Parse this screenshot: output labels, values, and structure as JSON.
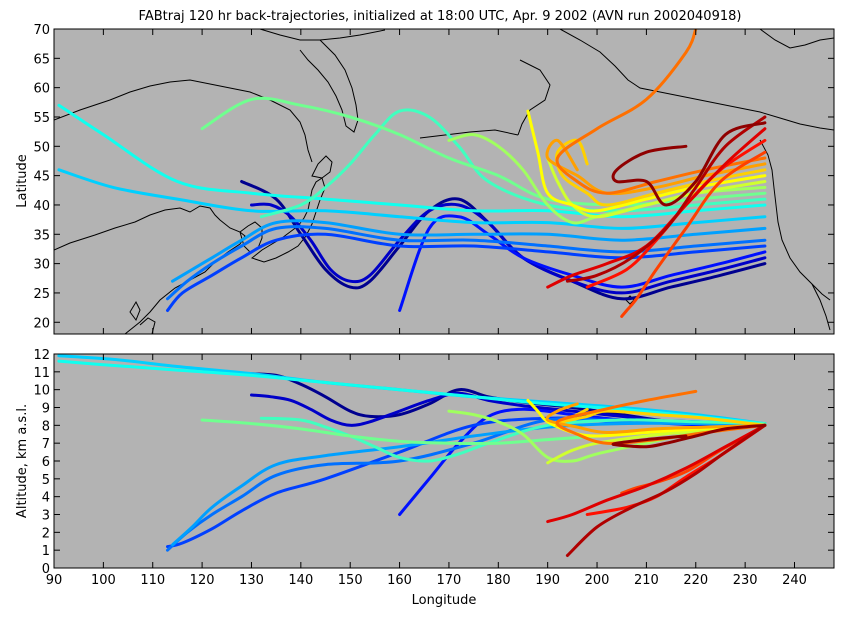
{
  "chart_data": [
    {
      "type": "line",
      "panel": "map",
      "title": "FABtraj 120 hr back-trajectories, initialized at 18:00 UTC, Apr. 9 2002 (AVN run 2002040918)",
      "ylabel": "Latitude",
      "xlim": [
        90,
        248
      ],
      "ylim": [
        18,
        70
      ],
      "xticks": [],
      "yticks": [
        20,
        25,
        30,
        35,
        40,
        45,
        50,
        55,
        60,
        65,
        70
      ],
      "grid": false,
      "coastlines": true
    },
    {
      "type": "line",
      "panel": "altitude",
      "xlabel": "Longitude",
      "ylabel": "Altitude, km a.s.l.",
      "xlim": [
        90,
        248
      ],
      "ylim": [
        0,
        12
      ],
      "xticks": [
        90,
        100,
        110,
        120,
        130,
        140,
        150,
        160,
        170,
        180,
        190,
        200,
        210,
        220,
        230,
        240
      ],
      "yticks": [
        0,
        1,
        2,
        3,
        4,
        5,
        6,
        7,
        8,
        9,
        10,
        11,
        12
      ],
      "grid": false
    }
  ],
  "trajectories": [
    {
      "color": "#00008f",
      "lon": [
        234,
        225,
        215,
        205,
        195,
        185,
        178,
        172,
        166,
        160,
        154,
        150,
        145,
        140,
        135,
        128
      ],
      "lat": [
        30,
        28,
        26,
        24,
        27,
        31,
        37,
        41,
        39,
        33,
        27,
        26,
        29,
        35,
        41,
        44
      ],
      "alt": [
        8.1,
        8.0,
        8.2,
        8.6,
        9.0,
        9.3,
        9.6,
        10.0,
        9.2,
        8.6,
        8.5,
        8.8,
        9.6,
        10.3,
        10.8,
        10.9
      ]
    },
    {
      "color": "#0000c8",
      "lon": [
        234,
        225,
        215,
        205,
        195,
        185,
        178,
        172,
        166,
        160,
        154,
        150,
        146,
        142,
        138,
        134,
        130
      ],
      "lat": [
        31,
        29,
        27,
        25,
        27,
        31,
        37,
        40,
        39,
        34,
        28,
        27,
        29,
        34,
        38,
        40,
        40
      ],
      "alt": [
        8.1,
        8.0,
        8.2,
        8.5,
        8.8,
        9.1,
        9.4,
        9.8,
        9.4,
        8.8,
        8.2,
        8.0,
        8.3,
        8.9,
        9.4,
        9.6,
        9.7
      ]
    },
    {
      "color": "#0010ff",
      "lon": [
        234,
        225,
        215,
        205,
        195,
        185,
        178,
        172,
        166,
        160
      ],
      "lat": [
        32,
        30,
        28,
        26,
        28,
        31,
        35,
        38,
        36,
        22
      ],
      "alt": [
        8.0,
        8.0,
        8.1,
        8.3,
        8.6,
        8.9,
        8.5,
        7.0,
        5.0,
        3.0
      ]
    },
    {
      "color": "#0040ff",
      "lon": [
        234,
        220,
        205,
        190,
        175,
        160,
        145,
        135,
        128,
        122,
        116,
        113
      ],
      "lat": [
        33,
        32,
        31,
        32,
        33,
        33,
        35,
        34,
        31,
        28,
        25,
        22
      ],
      "alt": [
        8.0,
        8.2,
        8.3,
        8.4,
        8.0,
        6.5,
        5.0,
        4.2,
        3.2,
        2.2,
        1.4,
        1.2
      ]
    },
    {
      "color": "#0070ff",
      "lon": [
        234,
        220,
        205,
        190,
        175,
        160,
        145,
        135,
        128,
        122,
        117,
        113
      ],
      "lat": [
        34,
        33,
        32,
        33,
        34,
        34,
        36,
        36,
        33,
        30,
        27,
        24
      ],
      "alt": [
        8.0,
        8.2,
        8.2,
        8.3,
        7.0,
        6.0,
        5.8,
        5.2,
        4.0,
        3.0,
        2.0,
        1.0
      ]
    },
    {
      "color": "#00a0ff",
      "lon": [
        234,
        220,
        205,
        190,
        175,
        160,
        145,
        135,
        128,
        122,
        118,
        114
      ],
      "lat": [
        36,
        35,
        34,
        35,
        35,
        35,
        37,
        37,
        34,
        31,
        29,
        27
      ],
      "alt": [
        8.0,
        8.1,
        8.1,
        7.9,
        7.4,
        6.8,
        6.3,
        5.8,
        4.6,
        3.4,
        2.3,
        1.3
      ]
    },
    {
      "color": "#00d0ff",
      "lon": [
        234,
        220,
        205,
        190,
        175,
        160,
        145,
        130,
        115,
        102,
        91
      ],
      "lat": [
        38,
        37,
        36,
        37,
        37,
        38,
        39,
        39,
        41,
        43,
        46
      ],
      "alt": [
        8.1,
        8.6,
        9.0,
        9.3,
        9.6,
        10.0,
        10.4,
        10.9,
        11.3,
        11.7,
        11.9
      ]
    },
    {
      "color": "#10ffef",
      "lon": [
        234,
        220,
        205,
        190,
        175,
        160,
        145,
        130,
        115,
        100,
        91
      ],
      "lat": [
        40,
        39,
        38,
        39,
        39,
        40,
        41,
        42,
        44,
        52,
        57
      ],
      "alt": [
        8.1,
        8.5,
        8.9,
        9.2,
        9.6,
        10.0,
        10.4,
        10.8,
        11.1,
        11.4,
        11.6
      ]
    },
    {
      "color": "#40ffbf",
      "lon": [
        234,
        220,
        205,
        190,
        178,
        172,
        166,
        160,
        155,
        150,
        145,
        140,
        132
      ],
      "lat": [
        41,
        40,
        39,
        40,
        44,
        50,
        55,
        56,
        52,
        47,
        43,
        40,
        38
      ],
      "alt": [
        8.1,
        8.2,
        8.3,
        8.0,
        7.0,
        6.4,
        6.0,
        6.2,
        6.8,
        7.4,
        7.9,
        8.3,
        8.4
      ]
    },
    {
      "color": "#70ff8f",
      "lon": [
        234,
        220,
        205,
        190,
        180,
        170,
        160,
        150,
        140,
        130,
        120
      ],
      "lat": [
        42,
        41,
        40,
        41,
        45,
        48,
        52,
        55,
        57,
        58,
        53
      ],
      "alt": [
        8.0,
        7.8,
        7.5,
        7.2,
        7.0,
        7.0,
        7.1,
        7.4,
        7.8,
        8.1,
        8.3
      ]
    },
    {
      "color": "#a0ff5f",
      "lon": [
        234,
        220,
        210,
        200,
        195,
        190,
        185,
        180,
        175,
        170
      ],
      "lat": [
        43,
        42,
        40,
        38,
        37,
        40,
        46,
        50,
        52,
        51
      ],
      "alt": [
        8.0,
        7.6,
        7.0,
        6.4,
        6.0,
        6.2,
        7.5,
        8.2,
        8.6,
        8.8
      ]
    },
    {
      "color": "#d0ff2f",
      "lon": [
        234,
        220,
        210,
        200,
        195,
        192,
        190
      ],
      "lat": [
        44,
        42,
        40,
        38,
        40,
        44,
        48
      ],
      "alt": [
        8.0,
        7.7,
        7.4,
        7.0,
        6.6,
        6.2,
        5.9
      ]
    },
    {
      "color": "#ffff00",
      "lon": [
        234,
        220,
        210,
        200,
        195,
        190,
        188,
        186
      ],
      "lat": [
        45,
        43,
        41,
        39,
        40,
        42,
        49,
        56
      ],
      "alt": [
        8.0,
        7.8,
        7.6,
        7.4,
        7.6,
        8.2,
        8.8,
        9.4
      ]
    },
    {
      "color": "#ffd000",
      "lon": [
        234,
        222,
        212,
        202,
        198,
        193,
        192,
        196,
        198
      ],
      "lat": [
        46,
        44,
        42,
        40,
        42,
        45,
        49,
        51,
        47
      ],
      "alt": [
        8.0,
        8.4,
        8.6,
        8.8,
        8.5,
        8.2,
        8.0,
        8.6,
        8.9
      ]
    },
    {
      "color": "#ffa000",
      "lon": [
        234,
        222,
        212,
        202,
        196,
        190,
        192,
        196
      ],
      "lat": [
        47,
        45,
        43,
        42,
        45,
        48,
        51,
        46
      ],
      "alt": [
        8.0,
        7.9,
        7.8,
        7.6,
        7.9,
        8.3,
        8.8,
        9.2
      ]
    },
    {
      "color": "#ff7000",
      "lon": [
        234,
        222,
        212,
        202,
        196,
        192,
        200,
        210,
        218,
        220
      ],
      "lat": [
        48,
        46,
        44,
        42,
        44,
        48,
        53,
        58,
        66,
        70
      ],
      "alt": [
        8.0,
        7.6,
        7.2,
        7.0,
        7.5,
        8.2,
        8.8,
        9.4,
        9.8,
        9.9
      ]
    },
    {
      "color": "#ff4000",
      "lon": [
        234,
        225,
        218,
        212,
        208,
        206,
        205
      ],
      "lat": [
        49,
        44,
        36,
        29,
        24,
        22,
        21
      ],
      "alt": [
        8.0,
        6.6,
        5.4,
        4.8,
        4.5,
        4.3,
        4.2
      ]
    },
    {
      "color": "#ff1000",
      "lon": [
        234,
        225,
        218,
        212,
        206,
        198
      ],
      "lat": [
        51,
        46,
        40,
        34,
        29,
        26
      ],
      "alt": [
        8.0,
        6.3,
        5.1,
        4.0,
        3.4,
        3.0
      ]
    },
    {
      "color": "#df0000",
      "lon": [
        234,
        226,
        218,
        210,
        202,
        195,
        190
      ],
      "lat": [
        53,
        47,
        40,
        33,
        30,
        28,
        26
      ],
      "alt": [
        8.0,
        6.8,
        5.6,
        4.6,
        3.8,
        3.0,
        2.6
      ]
    },
    {
      "color": "#b00000",
      "lon": [
        234,
        226,
        220,
        214,
        207,
        200,
        194
      ],
      "lat": [
        55,
        50,
        43,
        36,
        31,
        28,
        27
      ],
      "alt": [
        8.0,
        6.5,
        5.3,
        4.3,
        3.4,
        2.3,
        0.7
      ]
    },
    {
      "color": "#8f0000",
      "lon": [
        234,
        226,
        220,
        214,
        210,
        204,
        204,
        210,
        218
      ],
      "lat": [
        54,
        52,
        44,
        40,
        44,
        44,
        46,
        49,
        50
      ],
      "alt": [
        8.0,
        7.8,
        7.4,
        7.0,
        6.8,
        6.9,
        7.0,
        7.2,
        7.4
      ]
    }
  ]
}
